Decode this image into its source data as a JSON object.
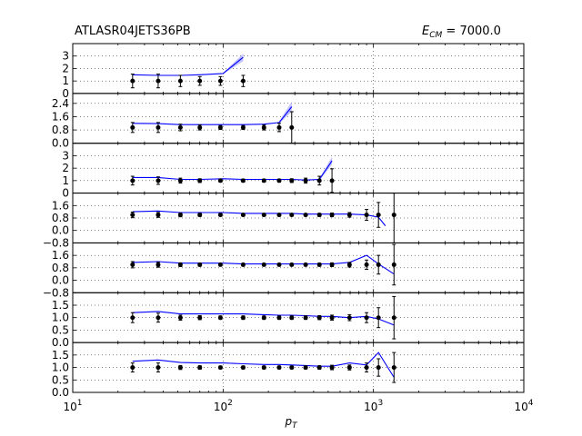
{
  "header": {
    "left": "ATLASR04JETS36PB",
    "right_symbol": "E",
    "right_subscript": "CM",
    "right_value": " = 7000.0"
  },
  "colors": {
    "theory": "#0000ff",
    "band": "#9999ff",
    "data": "#000000"
  },
  "chart_data": {
    "type": "line",
    "xscale": "log",
    "xlim": [
      10,
      10000
    ],
    "xlabel": "p",
    "xlabel_sub": "T",
    "xticks": [
      {
        "v": 10,
        "label": "10",
        "exp": "1"
      },
      {
        "v": 100,
        "label": "10",
        "exp": "2"
      },
      {
        "v": 1000,
        "label": "10",
        "exp": "3"
      },
      {
        "v": 10000,
        "label": "10",
        "exp": "4"
      }
    ],
    "grid": true,
    "panels": [
      {
        "ylim": [
          0,
          4
        ],
        "yticks": [
          0,
          1,
          2,
          3
        ],
        "ytick_labels": [
          "0",
          "1",
          "2",
          "3"
        ],
        "data": [
          {
            "x": 25,
            "y": 1.0,
            "err": 0.55
          },
          {
            "x": 37,
            "y": 1.0,
            "err": 0.55
          },
          {
            "x": 52,
            "y": 1.0,
            "err": 0.45
          },
          {
            "x": 70,
            "y": 1.0,
            "err": 0.35
          },
          {
            "x": 96,
            "y": 1.0,
            "err": 0.35
          },
          {
            "x": 136,
            "y": 1.0,
            "err": 0.45
          }
        ],
        "theory": [
          {
            "x": 25,
            "y": 1.5
          },
          {
            "x": 37,
            "y": 1.45
          },
          {
            "x": 52,
            "y": 1.45
          },
          {
            "x": 70,
            "y": 1.5
          },
          {
            "x": 100,
            "y": 1.6
          },
          {
            "x": 136,
            "y": 2.9
          }
        ],
        "band": [
          {
            "x": 100,
            "lo": 1.55,
            "hi": 1.65
          },
          {
            "x": 136,
            "lo": 2.6,
            "hi": 3.2
          }
        ]
      },
      {
        "ylim": [
          0,
          3.0
        ],
        "yticks": [
          0,
          0.8,
          1.6,
          2.4
        ],
        "ytick_labels": [
          "0.0",
          "0.8",
          "1.6",
          "2.4"
        ],
        "data": [
          {
            "x": 25,
            "y": 0.95,
            "err": 0.3
          },
          {
            "x": 37,
            "y": 0.95,
            "err": 0.3
          },
          {
            "x": 52,
            "y": 0.95,
            "err": 0.2
          },
          {
            "x": 70,
            "y": 0.95,
            "err": 0.15
          },
          {
            "x": 96,
            "y": 0.95,
            "err": 0.12
          },
          {
            "x": 136,
            "y": 0.95,
            "err": 0.12
          },
          {
            "x": 187,
            "y": 0.95,
            "err": 0.15
          },
          {
            "x": 236,
            "y": 0.95,
            "err": 0.25
          },
          {
            "x": 286,
            "y": 0.95,
            "err": 0.95
          }
        ],
        "theory": [
          {
            "x": 25,
            "y": 1.2
          },
          {
            "x": 37,
            "y": 1.18
          },
          {
            "x": 52,
            "y": 1.12
          },
          {
            "x": 70,
            "y": 1.12
          },
          {
            "x": 100,
            "y": 1.12
          },
          {
            "x": 136,
            "y": 1.12
          },
          {
            "x": 187,
            "y": 1.15
          },
          {
            "x": 236,
            "y": 1.25
          },
          {
            "x": 286,
            "y": 2.2
          }
        ],
        "band": [
          {
            "x": 236,
            "lo": 1.18,
            "hi": 1.32
          },
          {
            "x": 286,
            "lo": 1.9,
            "hi": 2.5
          }
        ]
      },
      {
        "ylim": [
          0,
          4
        ],
        "yticks": [
          0,
          1,
          2,
          3
        ],
        "ytick_labels": [
          "0",
          "1",
          "2",
          "3"
        ],
        "data": [
          {
            "x": 25,
            "y": 1.0,
            "err": 0.35
          },
          {
            "x": 37,
            "y": 1.0,
            "err": 0.3
          },
          {
            "x": 52,
            "y": 1.0,
            "err": 0.2
          },
          {
            "x": 70,
            "y": 1.0,
            "err": 0.15
          },
          {
            "x": 96,
            "y": 1.0,
            "err": 0.12
          },
          {
            "x": 136,
            "y": 1.0,
            "err": 0.12
          },
          {
            "x": 187,
            "y": 1.0,
            "err": 0.12
          },
          {
            "x": 236,
            "y": 1.0,
            "err": 0.12
          },
          {
            "x": 286,
            "y": 1.0,
            "err": 0.15
          },
          {
            "x": 354,
            "y": 1.0,
            "err": 0.2
          },
          {
            "x": 437,
            "y": 1.0,
            "err": 0.35
          },
          {
            "x": 530,
            "y": 1.0,
            "err": 0.95
          }
        ],
        "theory": [
          {
            "x": 25,
            "y": 1.25
          },
          {
            "x": 37,
            "y": 1.25
          },
          {
            "x": 52,
            "y": 1.1
          },
          {
            "x": 70,
            "y": 1.1
          },
          {
            "x": 100,
            "y": 1.15
          },
          {
            "x": 136,
            "y": 1.1
          },
          {
            "x": 187,
            "y": 1.1
          },
          {
            "x": 236,
            "y": 1.1
          },
          {
            "x": 286,
            "y": 1.1
          },
          {
            "x": 354,
            "y": 1.05
          },
          {
            "x": 437,
            "y": 1.1
          },
          {
            "x": 530,
            "y": 2.6
          }
        ],
        "band": [
          {
            "x": 437,
            "lo": 1.0,
            "hi": 1.2
          },
          {
            "x": 530,
            "lo": 2.3,
            "hi": 2.9
          }
        ]
      },
      {
        "ylim": [
          -0.8,
          2.4
        ],
        "yticks": [
          -0.8,
          0,
          0.8,
          1.6
        ],
        "ytick_labels": [
          "−0.8",
          "0.0",
          "0.8",
          "1.6"
        ],
        "data": [
          {
            "x": 25,
            "y": 1.0,
            "err": 0.18
          },
          {
            "x": 37,
            "y": 1.0,
            "err": 0.16
          },
          {
            "x": 52,
            "y": 1.0,
            "err": 0.12
          },
          {
            "x": 70,
            "y": 1.0,
            "err": 0.1
          },
          {
            "x": 96,
            "y": 1.0,
            "err": 0.08
          },
          {
            "x": 136,
            "y": 1.0,
            "err": 0.08
          },
          {
            "x": 187,
            "y": 1.0,
            "err": 0.08
          },
          {
            "x": 236,
            "y": 1.0,
            "err": 0.08
          },
          {
            "x": 286,
            "y": 1.0,
            "err": 0.08
          },
          {
            "x": 354,
            "y": 1.0,
            "err": 0.08
          },
          {
            "x": 437,
            "y": 1.0,
            "err": 0.1
          },
          {
            "x": 530,
            "y": 1.0,
            "err": 0.12
          },
          {
            "x": 693,
            "y": 1.0,
            "err": 0.15
          },
          {
            "x": 900,
            "y": 1.0,
            "err": 0.35
          },
          {
            "x": 1080,
            "y": 1.0,
            "err": 0.8
          },
          {
            "x": 1370,
            "y": 1.0,
            "err": 1.8
          }
        ],
        "theory": [
          {
            "x": 25,
            "y": 1.2
          },
          {
            "x": 37,
            "y": 1.25
          },
          {
            "x": 52,
            "y": 1.15
          },
          {
            "x": 70,
            "y": 1.15
          },
          {
            "x": 100,
            "y": 1.15
          },
          {
            "x": 136,
            "y": 1.1
          },
          {
            "x": 187,
            "y": 1.1
          },
          {
            "x": 236,
            "y": 1.1
          },
          {
            "x": 286,
            "y": 1.1
          },
          {
            "x": 354,
            "y": 1.05
          },
          {
            "x": 437,
            "y": 1.05
          },
          {
            "x": 530,
            "y": 1.05
          },
          {
            "x": 693,
            "y": 1.05
          },
          {
            "x": 900,
            "y": 1.0
          },
          {
            "x": 1080,
            "y": 0.85
          },
          {
            "x": 1200,
            "y": 0.3
          }
        ],
        "band": []
      },
      {
        "ylim": [
          -0.8,
          2.4
        ],
        "yticks": [
          -0.8,
          0,
          0.8,
          1.6
        ],
        "ytick_labels": [
          "−0.8",
          "0.0",
          "0.8",
          "1.6"
        ],
        "data": [
          {
            "x": 25,
            "y": 1.0,
            "err": 0.2
          },
          {
            "x": 37,
            "y": 1.0,
            "err": 0.16
          },
          {
            "x": 52,
            "y": 1.0,
            "err": 0.12
          },
          {
            "x": 70,
            "y": 1.0,
            "err": 0.1
          },
          {
            "x": 96,
            "y": 1.0,
            "err": 0.08
          },
          {
            "x": 136,
            "y": 1.0,
            "err": 0.08
          },
          {
            "x": 187,
            "y": 1.0,
            "err": 0.08
          },
          {
            "x": 236,
            "y": 1.0,
            "err": 0.08
          },
          {
            "x": 286,
            "y": 1.0,
            "err": 0.08
          },
          {
            "x": 354,
            "y": 1.0,
            "err": 0.08
          },
          {
            "x": 437,
            "y": 1.0,
            "err": 0.1
          },
          {
            "x": 530,
            "y": 1.0,
            "err": 0.12
          },
          {
            "x": 693,
            "y": 1.0,
            "err": 0.15
          },
          {
            "x": 900,
            "y": 1.0,
            "err": 0.3
          },
          {
            "x": 1080,
            "y": 1.0,
            "err": 0.6
          },
          {
            "x": 1370,
            "y": 1.0,
            "err": 1.3
          }
        ],
        "theory": [
          {
            "x": 25,
            "y": 1.15
          },
          {
            "x": 37,
            "y": 1.2
          },
          {
            "x": 52,
            "y": 1.1
          },
          {
            "x": 70,
            "y": 1.1
          },
          {
            "x": 100,
            "y": 1.1
          },
          {
            "x": 136,
            "y": 1.05
          },
          {
            "x": 187,
            "y": 1.05
          },
          {
            "x": 236,
            "y": 1.05
          },
          {
            "x": 286,
            "y": 1.05
          },
          {
            "x": 354,
            "y": 1.05
          },
          {
            "x": 437,
            "y": 1.05
          },
          {
            "x": 530,
            "y": 1.05
          },
          {
            "x": 693,
            "y": 1.15
          },
          {
            "x": 900,
            "y": 1.6
          },
          {
            "x": 1080,
            "y": 1.05
          },
          {
            "x": 1370,
            "y": 0.4
          }
        ],
        "band": []
      },
      {
        "ylim": [
          0,
          2.0
        ],
        "yticks": [
          0,
          0.5,
          1.0,
          1.5
        ],
        "ytick_labels": [
          "0.0",
          "0.5",
          "1.0",
          "1.5"
        ],
        "data": [
          {
            "x": 25,
            "y": 1.0,
            "err": 0.2
          },
          {
            "x": 37,
            "y": 1.0,
            "err": 0.18
          },
          {
            "x": 52,
            "y": 1.0,
            "err": 0.1
          },
          {
            "x": 70,
            "y": 1.0,
            "err": 0.08
          },
          {
            "x": 96,
            "y": 1.0,
            "err": 0.07
          },
          {
            "x": 136,
            "y": 1.0,
            "err": 0.07
          },
          {
            "x": 187,
            "y": 1.0,
            "err": 0.07
          },
          {
            "x": 236,
            "y": 1.0,
            "err": 0.07
          },
          {
            "x": 286,
            "y": 1.0,
            "err": 0.07
          },
          {
            "x": 354,
            "y": 1.0,
            "err": 0.07
          },
          {
            "x": 437,
            "y": 1.0,
            "err": 0.08
          },
          {
            "x": 530,
            "y": 1.0,
            "err": 0.1
          },
          {
            "x": 693,
            "y": 1.0,
            "err": 0.12
          },
          {
            "x": 900,
            "y": 1.0,
            "err": 0.2
          },
          {
            "x": 1080,
            "y": 1.0,
            "err": 0.4
          },
          {
            "x": 1370,
            "y": 1.0,
            "err": 0.85
          }
        ],
        "theory": [
          {
            "x": 25,
            "y": 1.2
          },
          {
            "x": 37,
            "y": 1.25
          },
          {
            "x": 52,
            "y": 1.15
          },
          {
            "x": 70,
            "y": 1.15
          },
          {
            "x": 100,
            "y": 1.15
          },
          {
            "x": 136,
            "y": 1.15
          },
          {
            "x": 187,
            "y": 1.12
          },
          {
            "x": 236,
            "y": 1.1
          },
          {
            "x": 286,
            "y": 1.1
          },
          {
            "x": 354,
            "y": 1.08
          },
          {
            "x": 437,
            "y": 1.05
          },
          {
            "x": 530,
            "y": 1.05
          },
          {
            "x": 693,
            "y": 1.0
          },
          {
            "x": 900,
            "y": 1.05
          },
          {
            "x": 1080,
            "y": 0.95
          },
          {
            "x": 1370,
            "y": 0.7
          }
        ],
        "band": []
      },
      {
        "ylim": [
          0,
          2.0
        ],
        "yticks": [
          0,
          0.5,
          1.0,
          1.5
        ],
        "ytick_labels": [
          "0.0",
          "0.5",
          "1.0",
          "1.5"
        ],
        "data": [
          {
            "x": 25,
            "y": 1.0,
            "err": 0.18
          },
          {
            "x": 37,
            "y": 1.0,
            "err": 0.18
          },
          {
            "x": 52,
            "y": 1.0,
            "err": 0.08
          },
          {
            "x": 70,
            "y": 1.0,
            "err": 0.07
          },
          {
            "x": 96,
            "y": 1.0,
            "err": 0.06
          },
          {
            "x": 136,
            "y": 1.0,
            "err": 0.06
          },
          {
            "x": 187,
            "y": 1.0,
            "err": 0.06
          },
          {
            "x": 236,
            "y": 1.0,
            "err": 0.06
          },
          {
            "x": 286,
            "y": 1.0,
            "err": 0.06
          },
          {
            "x": 354,
            "y": 1.0,
            "err": 0.06
          },
          {
            "x": 437,
            "y": 1.0,
            "err": 0.07
          },
          {
            "x": 530,
            "y": 1.0,
            "err": 0.09
          },
          {
            "x": 693,
            "y": 1.0,
            "err": 0.1
          },
          {
            "x": 900,
            "y": 1.0,
            "err": 0.18
          },
          {
            "x": 1080,
            "y": 1.0,
            "err": 0.35
          },
          {
            "x": 1370,
            "y": 1.0,
            "err": 0.6
          }
        ],
        "theory": [
          {
            "x": 25,
            "y": 1.25
          },
          {
            "x": 37,
            "y": 1.3
          },
          {
            "x": 52,
            "y": 1.2
          },
          {
            "x": 70,
            "y": 1.18
          },
          {
            "x": 100,
            "y": 1.18
          },
          {
            "x": 136,
            "y": 1.15
          },
          {
            "x": 187,
            "y": 1.12
          },
          {
            "x": 236,
            "y": 1.12
          },
          {
            "x": 286,
            "y": 1.1
          },
          {
            "x": 354,
            "y": 1.08
          },
          {
            "x": 437,
            "y": 1.05
          },
          {
            "x": 530,
            "y": 1.05
          },
          {
            "x": 693,
            "y": 1.18
          },
          {
            "x": 900,
            "y": 1.1
          },
          {
            "x": 1080,
            "y": 1.6
          },
          {
            "x": 1370,
            "y": 0.6
          }
        ],
        "band": []
      }
    ]
  }
}
